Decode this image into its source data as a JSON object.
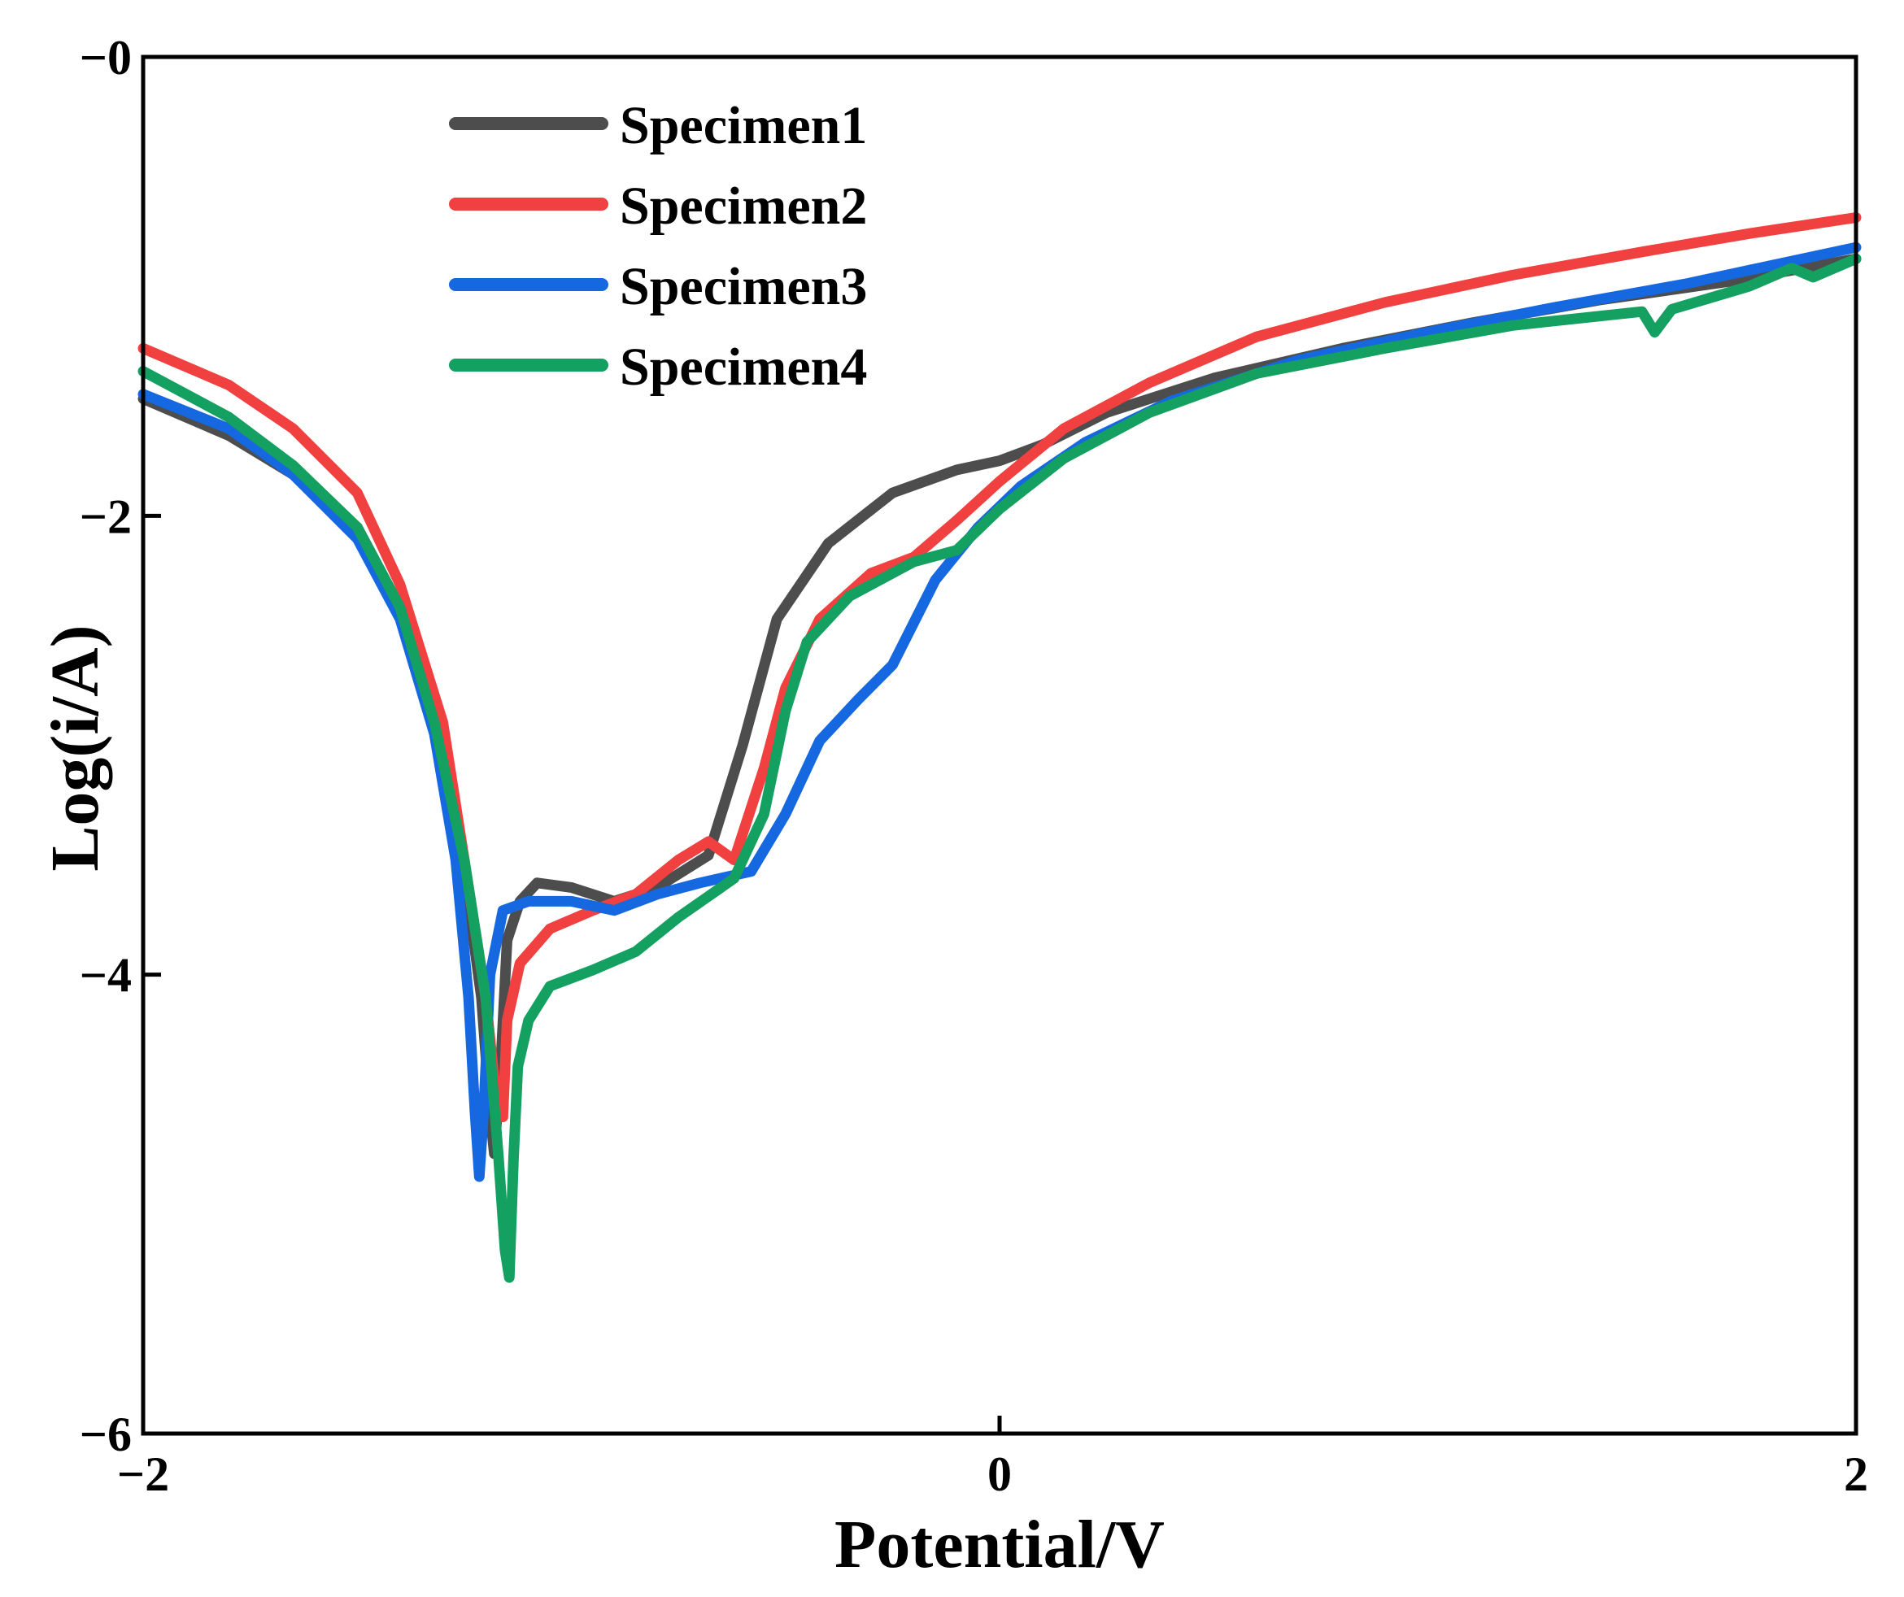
{
  "chart_data": {
    "type": "line",
    "title": "",
    "xlabel": "Potential/V",
    "ylabel": "Log(i/A)",
    "xlim": [
      -2,
      2
    ],
    "ylim": [
      -6,
      0
    ],
    "xticks": [
      -2,
      0,
      2
    ],
    "xtick_labels": [
      "−2",
      "0",
      "2"
    ],
    "yticks": [
      0,
      -2,
      -4,
      -6
    ],
    "ytick_labels": [
      "−0",
      "−2",
      "−4",
      "−6"
    ],
    "grid": false,
    "legend_position": "top-left",
    "series": [
      {
        "name": "Specimen1",
        "color": "#4d4d4d",
        "points": [
          [
            -2.0,
            -1.49
          ],
          [
            -1.8,
            -1.65
          ],
          [
            -1.65,
            -1.82
          ],
          [
            -1.5,
            -2.05
          ],
          [
            -1.4,
            -2.4
          ],
          [
            -1.3,
            -3.0
          ],
          [
            -1.25,
            -3.55
          ],
          [
            -1.21,
            -4.1
          ],
          [
            -1.19,
            -4.6
          ],
          [
            -1.18,
            -4.78
          ],
          [
            -1.165,
            -4.4
          ],
          [
            -1.15,
            -3.85
          ],
          [
            -1.12,
            -3.68
          ],
          [
            -1.08,
            -3.6
          ],
          [
            -1.0,
            -3.62
          ],
          [
            -0.9,
            -3.68
          ],
          [
            -0.8,
            -3.62
          ],
          [
            -0.68,
            -3.48
          ],
          [
            -0.6,
            -3.0
          ],
          [
            -0.52,
            -2.45
          ],
          [
            -0.4,
            -2.12
          ],
          [
            -0.25,
            -1.9
          ],
          [
            -0.1,
            -1.8
          ],
          [
            0.0,
            -1.76
          ],
          [
            0.1,
            -1.69
          ],
          [
            0.25,
            -1.55
          ],
          [
            0.5,
            -1.4
          ],
          [
            0.8,
            -1.27
          ],
          [
            1.1,
            -1.16
          ],
          [
            1.4,
            -1.06
          ],
          [
            1.7,
            -0.98
          ],
          [
            2.0,
            -0.88
          ]
        ]
      },
      {
        "name": "Specimen2",
        "color": "#f04040",
        "points": [
          [
            -2.0,
            -1.27
          ],
          [
            -1.8,
            -1.43
          ],
          [
            -1.65,
            -1.62
          ],
          [
            -1.5,
            -1.9
          ],
          [
            -1.4,
            -2.3
          ],
          [
            -1.3,
            -2.9
          ],
          [
            -1.25,
            -3.5
          ],
          [
            -1.2,
            -4.1
          ],
          [
            -1.175,
            -4.55
          ],
          [
            -1.16,
            -4.62
          ],
          [
            -1.15,
            -4.2
          ],
          [
            -1.12,
            -3.95
          ],
          [
            -1.05,
            -3.8
          ],
          [
            -0.95,
            -3.72
          ],
          [
            -0.85,
            -3.65
          ],
          [
            -0.75,
            -3.5
          ],
          [
            -0.68,
            -3.42
          ],
          [
            -0.62,
            -3.5
          ],
          [
            -0.55,
            -3.1
          ],
          [
            -0.5,
            -2.75
          ],
          [
            -0.42,
            -2.45
          ],
          [
            -0.3,
            -2.25
          ],
          [
            -0.2,
            -2.18
          ],
          [
            -0.1,
            -2.02
          ],
          [
            0.0,
            -1.85
          ],
          [
            0.15,
            -1.62
          ],
          [
            0.35,
            -1.42
          ],
          [
            0.6,
            -1.22
          ],
          [
            0.9,
            -1.07
          ],
          [
            1.2,
            -0.95
          ],
          [
            1.5,
            -0.85
          ],
          [
            1.75,
            -0.77
          ],
          [
            2.0,
            -0.7
          ]
        ]
      },
      {
        "name": "Specimen3",
        "color": "#1668e0",
        "points": [
          [
            -2.0,
            -1.47
          ],
          [
            -1.8,
            -1.62
          ],
          [
            -1.65,
            -1.82
          ],
          [
            -1.5,
            -2.1
          ],
          [
            -1.4,
            -2.45
          ],
          [
            -1.32,
            -2.95
          ],
          [
            -1.27,
            -3.5
          ],
          [
            -1.24,
            -4.1
          ],
          [
            -1.225,
            -4.6
          ],
          [
            -1.215,
            -4.88
          ],
          [
            -1.205,
            -4.6
          ],
          [
            -1.19,
            -4.0
          ],
          [
            -1.16,
            -3.72
          ],
          [
            -1.1,
            -3.68
          ],
          [
            -1.0,
            -3.68
          ],
          [
            -0.9,
            -3.72
          ],
          [
            -0.8,
            -3.65
          ],
          [
            -0.7,
            -3.6
          ],
          [
            -0.58,
            -3.55
          ],
          [
            -0.5,
            -3.3
          ],
          [
            -0.42,
            -2.98
          ],
          [
            -0.33,
            -2.8
          ],
          [
            -0.25,
            -2.65
          ],
          [
            -0.15,
            -2.28
          ],
          [
            -0.05,
            -2.05
          ],
          [
            0.05,
            -1.87
          ],
          [
            0.2,
            -1.68
          ],
          [
            0.4,
            -1.5
          ],
          [
            0.7,
            -1.32
          ],
          [
            1.0,
            -1.2
          ],
          [
            1.3,
            -1.09
          ],
          [
            1.6,
            -0.99
          ],
          [
            2.0,
            -0.83
          ]
        ]
      },
      {
        "name": "Specimen4",
        "color": "#13a060",
        "points": [
          [
            -2.0,
            -1.37
          ],
          [
            -1.8,
            -1.57
          ],
          [
            -1.65,
            -1.78
          ],
          [
            -1.5,
            -2.05
          ],
          [
            -1.4,
            -2.4
          ],
          [
            -1.32,
            -2.9
          ],
          [
            -1.25,
            -3.5
          ],
          [
            -1.2,
            -4.1
          ],
          [
            -1.17,
            -4.8
          ],
          [
            -1.155,
            -5.2
          ],
          [
            -1.145,
            -5.32
          ],
          [
            -1.135,
            -4.8
          ],
          [
            -1.125,
            -4.4
          ],
          [
            -1.1,
            -4.2
          ],
          [
            -1.05,
            -4.05
          ],
          [
            -0.95,
            -3.98
          ],
          [
            -0.85,
            -3.9
          ],
          [
            -0.75,
            -3.75
          ],
          [
            -0.62,
            -3.58
          ],
          [
            -0.55,
            -3.3
          ],
          [
            -0.5,
            -2.85
          ],
          [
            -0.45,
            -2.55
          ],
          [
            -0.35,
            -2.35
          ],
          [
            -0.2,
            -2.2
          ],
          [
            -0.1,
            -2.15
          ],
          [
            0.0,
            -1.97
          ],
          [
            0.15,
            -1.75
          ],
          [
            0.35,
            -1.55
          ],
          [
            0.6,
            -1.38
          ],
          [
            0.9,
            -1.27
          ],
          [
            1.2,
            -1.17
          ],
          [
            1.5,
            -1.11
          ],
          [
            1.53,
            -1.2
          ],
          [
            1.57,
            -1.1
          ],
          [
            1.75,
            -1.0
          ],
          [
            1.85,
            -0.92
          ],
          [
            1.9,
            -0.96
          ],
          [
            2.0,
            -0.88
          ]
        ]
      }
    ]
  }
}
